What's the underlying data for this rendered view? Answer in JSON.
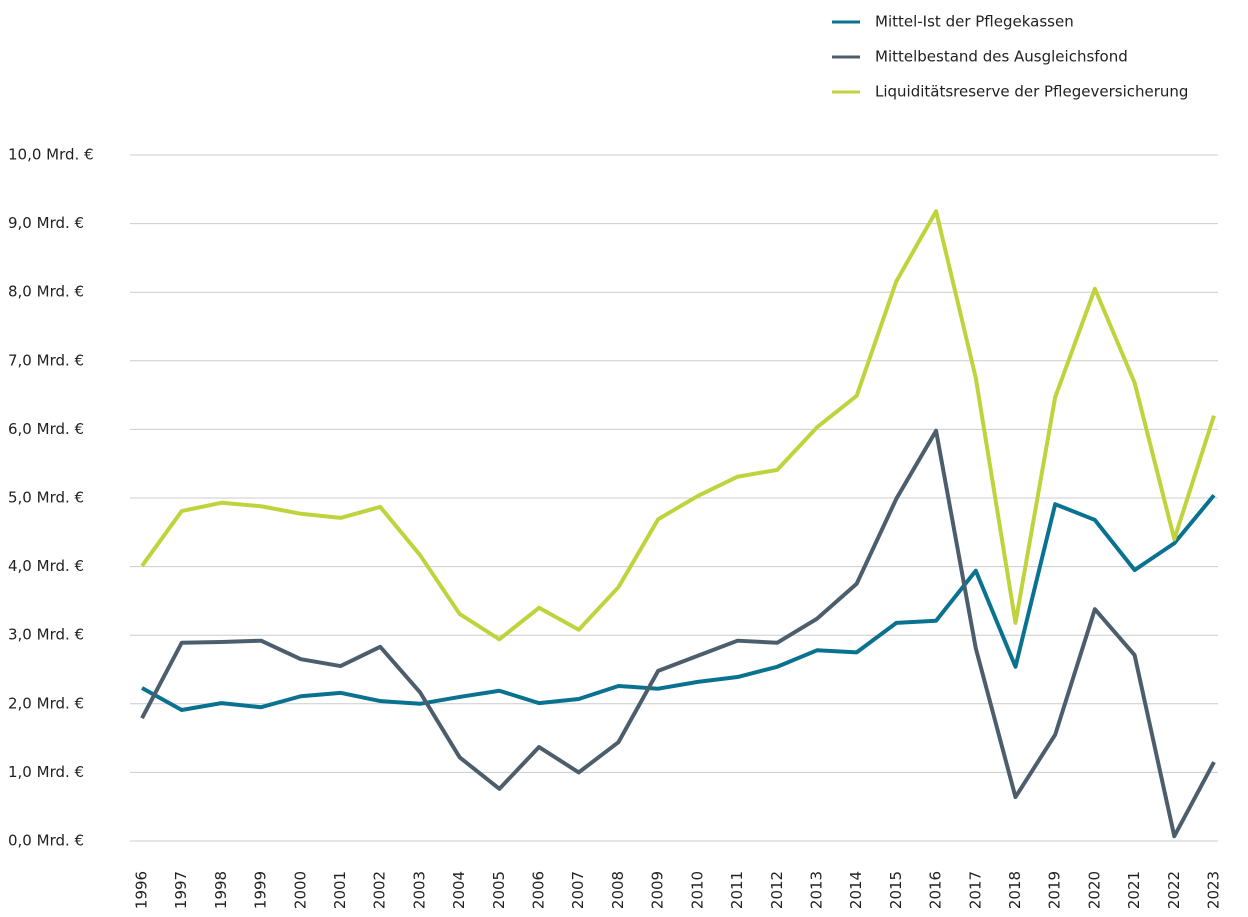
{
  "chart_data": {
    "type": "line",
    "categories": [
      "1996",
      "1997",
      "1998",
      "1999",
      "2000",
      "2001",
      "2002",
      "2003",
      "2004",
      "2005",
      "2006",
      "2007",
      "2008",
      "2009",
      "2010",
      "2011",
      "2012",
      "2013",
      "2014",
      "2015",
      "2016",
      "2017",
      "2018",
      "2019",
      "2020",
      "2021",
      "2022",
      "2023"
    ],
    "series": [
      {
        "name": "Mittel-Ist der Pflegekassen",
        "color": "#0a7291",
        "values": [
          2.23,
          1.91,
          2.01,
          1.95,
          2.11,
          2.16,
          2.04,
          2.0,
          2.1,
          2.19,
          2.01,
          2.07,
          2.26,
          2.22,
          2.32,
          2.39,
          2.54,
          2.78,
          2.75,
          3.18,
          3.21,
          3.94,
          2.54,
          4.91,
          4.68,
          3.95,
          4.34,
          5.04
        ]
      },
      {
        "name": "Mittelbestand des Ausgleichsfond",
        "color": "#4c5e6c",
        "values": [
          1.79,
          2.89,
          2.9,
          2.92,
          2.65,
          2.55,
          2.83,
          2.17,
          1.22,
          0.76,
          1.37,
          1.0,
          1.44,
          2.48,
          2.7,
          2.92,
          2.89,
          3.24,
          3.75,
          4.99,
          5.98,
          2.81,
          0.64,
          1.55,
          3.38,
          2.71,
          0.07,
          1.15
        ]
      },
      {
        "name": "Liquiditätsreserve der Pflegeversicherung",
        "color": "#bfd43c",
        "values": [
          4.01,
          4.81,
          4.93,
          4.88,
          4.77,
          4.71,
          4.87,
          4.17,
          3.31,
          2.94,
          3.4,
          3.08,
          3.7,
          4.69,
          5.03,
          5.31,
          5.41,
          6.03,
          6.49,
          8.16,
          9.18,
          6.75,
          3.18,
          6.47,
          8.05,
          6.68,
          4.4,
          6.2
        ]
      }
    ],
    "ylim": [
      0,
      10
    ],
    "yticks": [
      {
        "value": 0,
        "label": "0,0 Mrd. €"
      },
      {
        "value": 1,
        "label": "1,0 Mrd. €"
      },
      {
        "value": 2,
        "label": "2,0 Mrd. €"
      },
      {
        "value": 3,
        "label": "3,0 Mrd. €"
      },
      {
        "value": 4,
        "label": "4,0 Mrd. €"
      },
      {
        "value": 5,
        "label": "5,0 Mrd. €"
      },
      {
        "value": 6,
        "label": "6,0 Mrd. €"
      },
      {
        "value": 7,
        "label": "7,0 Mrd. €"
      },
      {
        "value": 8,
        "label": "8,0 Mrd. €"
      },
      {
        "value": 9,
        "label": "9,0 Mrd. €"
      },
      {
        "value": 10,
        "label": "10,0 Mrd. €"
      }
    ],
    "grid": true,
    "legend": "top-right"
  }
}
